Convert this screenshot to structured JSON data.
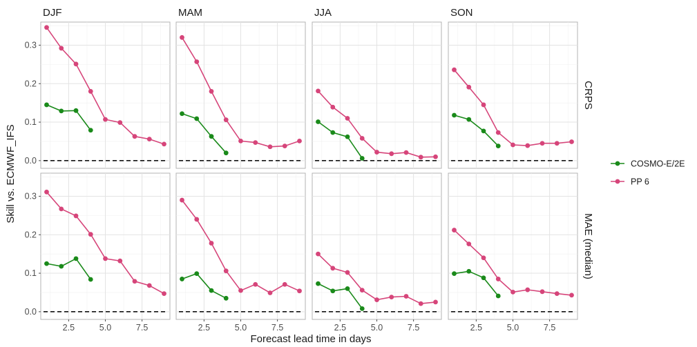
{
  "chart_data": {
    "type": "line",
    "xlabel": "Forecast lead time in days",
    "ylabel": "Skill vs. ECMWF_IFS",
    "xlim": [
      0.6,
      9.4
    ],
    "ylim": [
      -0.02,
      0.36
    ],
    "x_ticks": [
      2.5,
      5.0,
      7.5
    ],
    "x_tick_labels": [
      "2.5",
      "5.0",
      "7.5"
    ],
    "y_ticks": [
      0.0,
      0.1,
      0.2,
      0.3
    ],
    "y_tick_labels": [
      "0.0",
      "0.1",
      "0.2",
      "0.3"
    ],
    "reference_line": {
      "y": 0,
      "style": "dashed"
    },
    "grid": true,
    "columns": [
      "DJF",
      "MAM",
      "JJA",
      "SON"
    ],
    "rows": [
      "CRPS",
      "MAE (median)"
    ],
    "legend": {
      "position": "right",
      "entries": [
        {
          "name": "COSMO-E/2E",
          "color": "#1a8a1a"
        },
        {
          "name": "PP 6",
          "color": "#d6457a"
        }
      ]
    },
    "panels": [
      {
        "row": "CRPS",
        "col": "DJF",
        "series": [
          {
            "name": "COSMO-E/2E",
            "x": [
              1,
              2,
              3,
              4
            ],
            "y": [
              0.145,
              0.129,
              0.13,
              0.079
            ]
          },
          {
            "name": "PP 6",
            "x": [
              1,
              2,
              3,
              4,
              5,
              6,
              7,
              8,
              9
            ],
            "y": [
              0.346,
              0.292,
              0.251,
              0.18,
              0.107,
              0.099,
              0.063,
              0.056,
              0.043
            ]
          }
        ]
      },
      {
        "row": "CRPS",
        "col": "MAM",
        "series": [
          {
            "name": "COSMO-E/2E",
            "x": [
              1,
              2,
              3,
              4
            ],
            "y": [
              0.122,
              0.109,
              0.063,
              0.02
            ]
          },
          {
            "name": "PP 6",
            "x": [
              1,
              2,
              3,
              4,
              5,
              6,
              7,
              8,
              9
            ],
            "y": [
              0.32,
              0.257,
              0.18,
              0.106,
              0.051,
              0.047,
              0.036,
              0.038,
              0.051
            ]
          }
        ]
      },
      {
        "row": "CRPS",
        "col": "JJA",
        "series": [
          {
            "name": "COSMO-E/2E",
            "x": [
              1,
              2,
              3,
              4
            ],
            "y": [
              0.101,
              0.073,
              0.062,
              0.006
            ]
          },
          {
            "name": "PP 6",
            "x": [
              1,
              2,
              3,
              4,
              5,
              6,
              7,
              8,
              9
            ],
            "y": [
              0.181,
              0.139,
              0.11,
              0.058,
              0.022,
              0.018,
              0.021,
              0.009,
              0.01
            ]
          }
        ]
      },
      {
        "row": "CRPS",
        "col": "SON",
        "series": [
          {
            "name": "COSMO-E/2E",
            "x": [
              1,
              2,
              3,
              4
            ],
            "y": [
              0.118,
              0.107,
              0.077,
              0.038
            ]
          },
          {
            "name": "PP 6",
            "x": [
              1,
              2,
              3,
              4,
              5,
              6,
              7,
              8,
              9
            ],
            "y": [
              0.236,
              0.191,
              0.145,
              0.073,
              0.041,
              0.039,
              0.045,
              0.045,
              0.049
            ]
          }
        ]
      },
      {
        "row": "MAE (median)",
        "col": "DJF",
        "series": [
          {
            "name": "COSMO-E/2E",
            "x": [
              1,
              2,
              3,
              4
            ],
            "y": [
              0.125,
              0.118,
              0.138,
              0.084
            ]
          },
          {
            "name": "PP 6",
            "x": [
              1,
              2,
              3,
              4,
              5,
              6,
              7,
              8,
              9
            ],
            "y": [
              0.311,
              0.267,
              0.249,
              0.201,
              0.138,
              0.132,
              0.079,
              0.068,
              0.047
            ]
          }
        ]
      },
      {
        "row": "MAE (median)",
        "col": "MAM",
        "series": [
          {
            "name": "COSMO-E/2E",
            "x": [
              1,
              2,
              3,
              4
            ],
            "y": [
              0.085,
              0.099,
              0.055,
              0.035
            ]
          },
          {
            "name": "PP 6",
            "x": [
              1,
              2,
              3,
              4,
              5,
              6,
              7,
              8,
              9
            ],
            "y": [
              0.29,
              0.24,
              0.178,
              0.106,
              0.055,
              0.071,
              0.049,
              0.071,
              0.054
            ]
          }
        ]
      },
      {
        "row": "MAE (median)",
        "col": "JJA",
        "series": [
          {
            "name": "COSMO-E/2E",
            "x": [
              1,
              2,
              3,
              4
            ],
            "y": [
              0.073,
              0.054,
              0.06,
              0.008
            ]
          },
          {
            "name": "PP 6",
            "x": [
              1,
              2,
              3,
              4,
              5,
              6,
              7,
              8,
              9
            ],
            "y": [
              0.15,
              0.113,
              0.102,
              0.056,
              0.031,
              0.038,
              0.04,
              0.021,
              0.025
            ]
          }
        ]
      },
      {
        "row": "MAE (median)",
        "col": "SON",
        "series": [
          {
            "name": "COSMO-E/2E",
            "x": [
              1,
              2,
              3,
              4
            ],
            "y": [
              0.099,
              0.105,
              0.088,
              0.041
            ]
          },
          {
            "name": "PP 6",
            "x": [
              1,
              2,
              3,
              4,
              5,
              6,
              7,
              8,
              9
            ],
            "y": [
              0.212,
              0.176,
              0.14,
              0.085,
              0.051,
              0.057,
              0.052,
              0.047,
              0.043
            ]
          }
        ]
      }
    ]
  }
}
